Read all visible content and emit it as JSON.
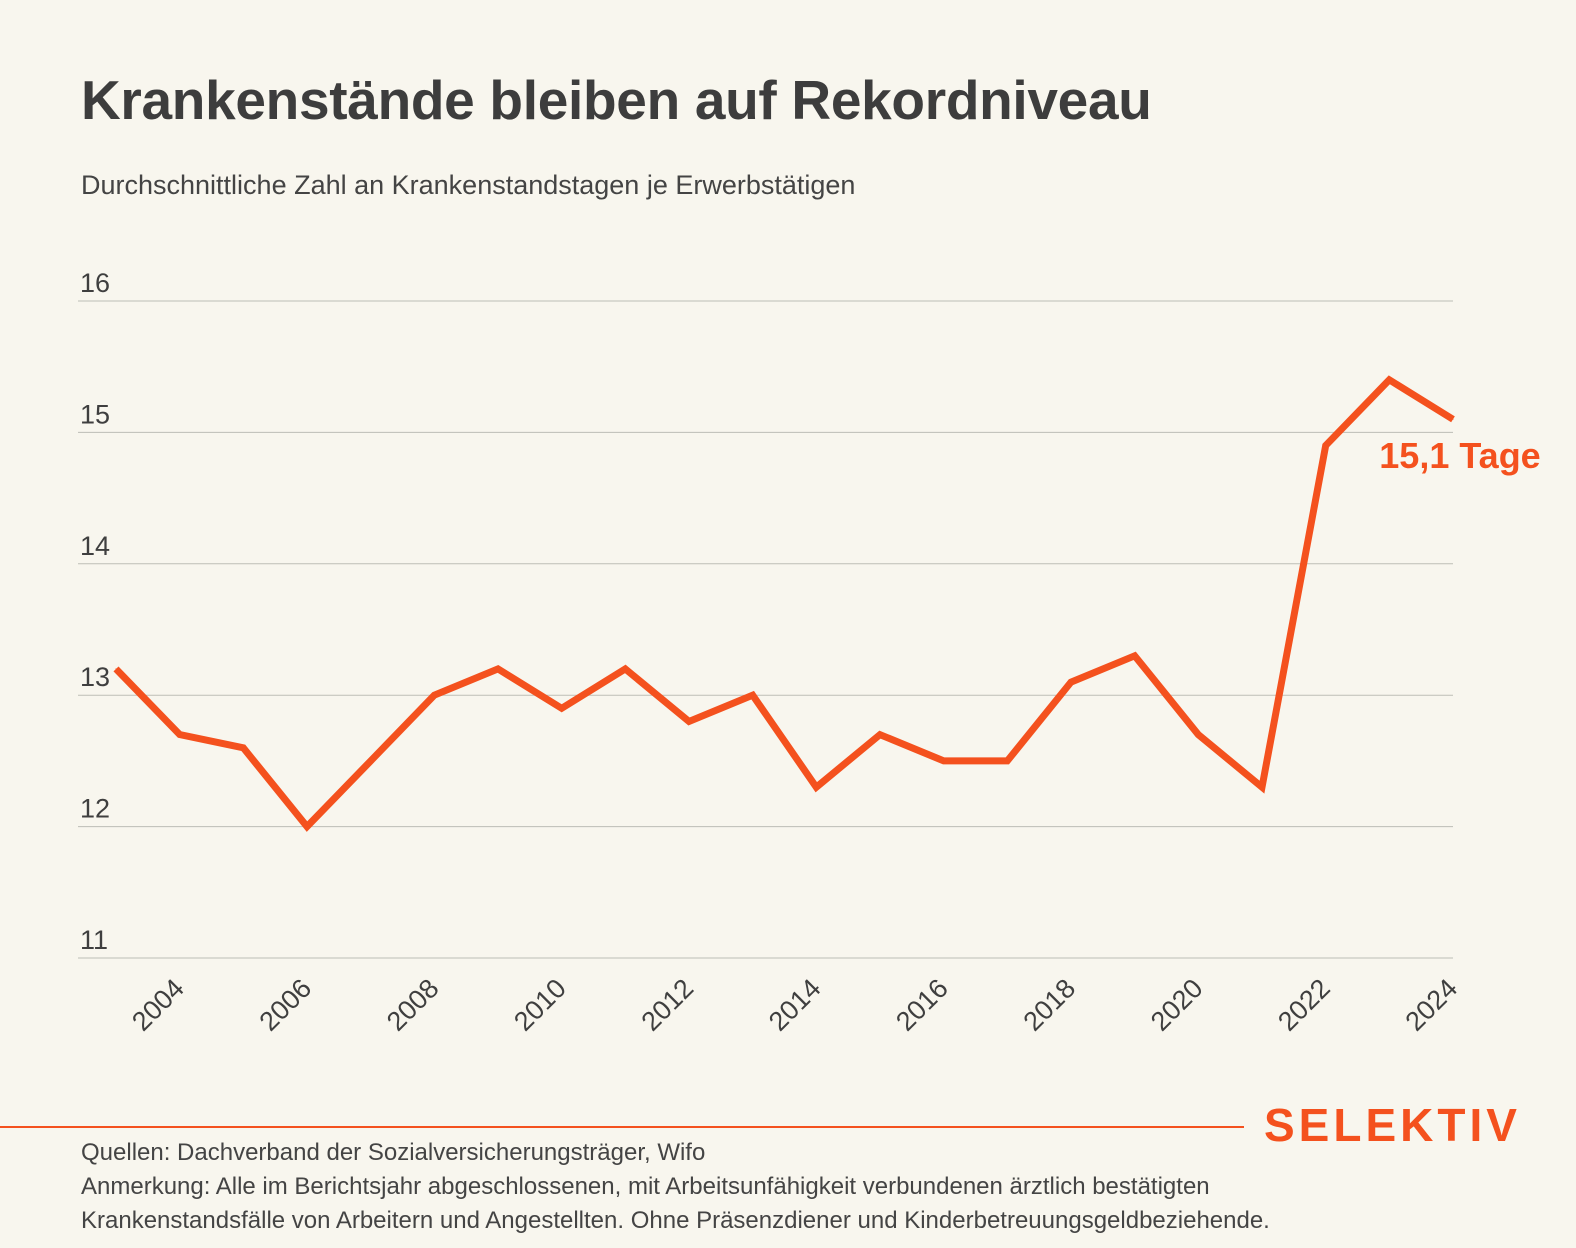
{
  "header": {
    "title": "Krankenstände bleiben auf Rekordniveau",
    "subtitle": "Durchschnittliche Zahl an Krankenstandstagen je Erwerbstätigen"
  },
  "chart_data": {
    "type": "line",
    "x": [
      2003,
      2004,
      2005,
      2006,
      2007,
      2008,
      2009,
      2010,
      2011,
      2012,
      2013,
      2014,
      2015,
      2016,
      2017,
      2018,
      2019,
      2020,
      2021,
      2022,
      2023,
      2024
    ],
    "series": [
      {
        "values": [
          13.2,
          12.7,
          12.6,
          12.0,
          12.5,
          13.0,
          13.2,
          12.9,
          13.2,
          12.8,
          13.0,
          12.3,
          12.7,
          12.5,
          12.5,
          13.1,
          13.3,
          12.7,
          12.3,
          14.9,
          15.4,
          15.1
        ],
        "color": "#f4511e"
      }
    ],
    "ylim": [
      11,
      16
    ],
    "yticks": [
      "11",
      "12",
      "13",
      "14",
      "15",
      "16"
    ],
    "xticks": [
      "2004",
      "2006",
      "2008",
      "2010",
      "2012",
      "2014",
      "2016",
      "2018",
      "2020",
      "2022",
      "2024"
    ],
    "annotation": "15,1 Tage",
    "grid": true
  },
  "footer": {
    "brand": "SELEKTIV",
    "source": "Quellen: Dachverband der Sozialversicherungsträger, Wifo",
    "note_line1": "Anmerkung: Alle im Berichtsjahr abgeschlossenen, mit Arbeitsunfähigkeit verbundenen ärztlich bestätigten",
    "note_line2": "Krankenstandsfälle von Arbeitern und Angestellten. Ohne Präsenzdiener und Kinderbetreuungsgeldbeziehende."
  },
  "colors": {
    "accent": "#f4511e",
    "background": "#f8f6ee",
    "text": "#3f3f3f",
    "grid": "#bdbdb6"
  }
}
